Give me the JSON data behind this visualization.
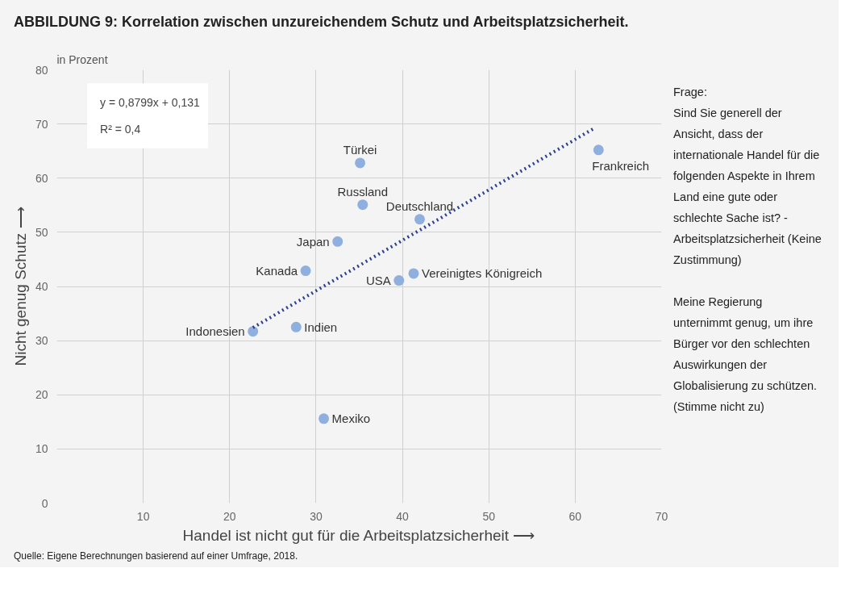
{
  "chart_data": {
    "type": "scatter",
    "title": "ABBILDUNG 9: Korrelation zwischen unzureichendem Schutz und Arbeitsplatzsicherheit.",
    "xlabel": "Handel ist nicht gut für die Arbeitsplatzsicherheit ⟶",
    "ylabel": "Nicht genug Schutz ⟶",
    "series": [
      {
        "color": "#8fb0de",
        "x": [
          22.7,
          27.7,
          30.9,
          28.8,
          32.5,
          35.1,
          35.4,
          42.0,
          39.6,
          41.3,
          62.7
        ],
        "values": [
          31.7,
          32.5,
          15.6,
          42.9,
          48.3,
          62.8,
          55.1,
          52.4,
          41.1,
          42.4,
          65.2
        ]
      },
      {
        "type": "line",
        "color": "#2b3f8f",
        "line_style": "dotted",
        "marker": "none",
        "x": [
          22.7,
          62.2
        ],
        "values": [
          32.4,
          69.2
        ]
      }
    ],
    "marker": "circle",
    "xlim": [
      0,
      70
    ],
    "ylim": [
      0,
      80
    ],
    "xticks": [
      10,
      20,
      30,
      40,
      50,
      60,
      70
    ],
    "yticks": [
      0,
      10,
      20,
      30,
      40,
      50,
      60,
      70,
      80
    ],
    "grid": true,
    "annotations": [
      {
        "text": "Indonesien",
        "x": 22.7,
        "y": 31.7
      },
      {
        "text": "Indien",
        "x": 27.7,
        "y": 32.5
      },
      {
        "text": "Mexiko",
        "x": 30.9,
        "y": 15.6
      },
      {
        "text": "Kanada",
        "x": 28.8,
        "y": 42.9
      },
      {
        "text": "Japan",
        "x": 32.5,
        "y": 48.3
      },
      {
        "text": "Türkei",
        "x": 35.1,
        "y": 62.8
      },
      {
        "text": "Russland",
        "x": 35.4,
        "y": 55.1
      },
      {
        "text": "Deutschland",
        "x": 42.0,
        "y": 52.4
      },
      {
        "text": "USA",
        "x": 39.6,
        "y": 41.1
      },
      {
        "text": "Vereinigtes Königreich",
        "x": 41.3,
        "y": 42.4
      },
      {
        "text": "Frankreich",
        "x": 62.7,
        "y": 65.2
      },
      "y = 0,8799x + 0,131",
      "R² = 0,4",
      "in Prozent",
      "Frage:",
      "Sind Sie generell der Ansicht, dass der internationale Handel für die folgenden Aspekte in Ihrem Land eine gute oder schlechte Sache ist? - Arbeitsplatzsicherheit (Keine Zustimmung)",
      "Meine Regierung unternimmt genug, um ihre Bürger vor den schlechten Auswirkungen der Globalisierung zu schützen. (Stimme nicht zu)",
      "Quelle: Eigene Berechnungen basierend auf einer Umfrage, 2018."
    ]
  }
}
